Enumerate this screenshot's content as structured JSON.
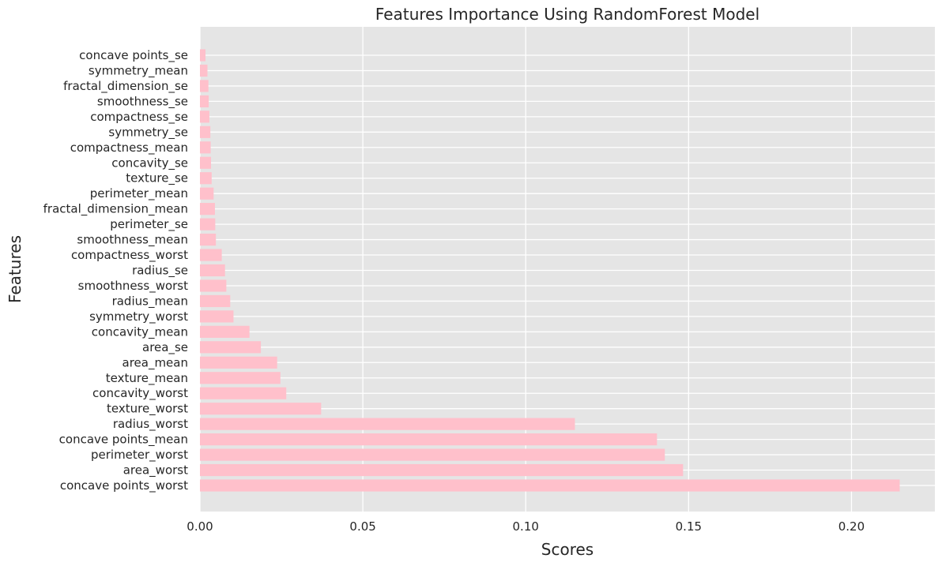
{
  "colors": {
    "bar": "#ffc0cb",
    "plot_background": "#e5e5e5",
    "grid": "#ffffff",
    "text": "#262626"
  },
  "chart_data": {
    "type": "bar",
    "orientation": "horizontal",
    "title": "Features Importance Using RandomForest Model",
    "xlabel": "Scores",
    "ylabel": "Features",
    "xlim": [
      0,
      0.2256
    ],
    "xticks": [
      0.0,
      0.05,
      0.1,
      0.15,
      0.2
    ],
    "xtick_labels": [
      "0.00",
      "0.05",
      "0.10",
      "0.15",
      "0.20"
    ],
    "grid": true,
    "categories": [
      "concave points_worst",
      "area_worst",
      "perimeter_worst",
      "concave points_mean",
      "radius_worst",
      "texture_worst",
      "concavity_worst",
      "texture_mean",
      "area_mean",
      "area_se",
      "concavity_mean",
      "symmetry_worst",
      "radius_mean",
      "smoothness_worst",
      "radius_se",
      "compactness_worst",
      "smoothness_mean",
      "perimeter_se",
      "fractal_dimension_mean",
      "perimeter_mean",
      "texture_se",
      "concavity_se",
      "compactness_mean",
      "symmetry_se",
      "compactness_se",
      "smoothness_se",
      "fractal_dimension_se",
      "symmetry_mean",
      "concave points_se"
    ],
    "values": [
      0.2148,
      0.1483,
      0.1427,
      0.1403,
      0.1151,
      0.0372,
      0.0265,
      0.0247,
      0.0237,
      0.0187,
      0.0152,
      0.0103,
      0.0093,
      0.0081,
      0.0077,
      0.0067,
      0.0049,
      0.0047,
      0.0046,
      0.0042,
      0.0036,
      0.0034,
      0.0033,
      0.0032,
      0.0029,
      0.0027,
      0.0026,
      0.0023,
      0.0017
    ]
  }
}
